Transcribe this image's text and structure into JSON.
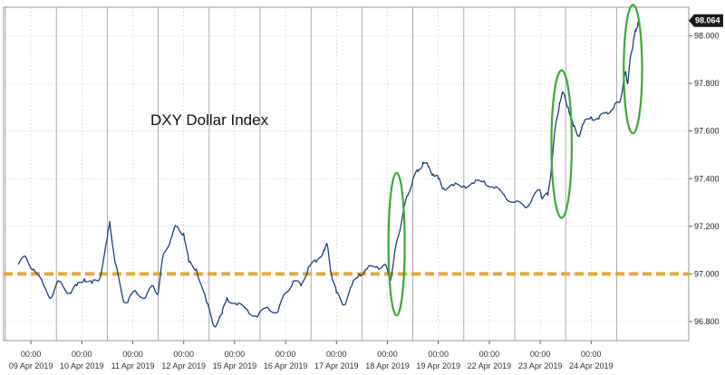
{
  "chart_data": {
    "type": "line",
    "title": "DXY Dollar Index",
    "xlabel": "",
    "ylabel": "",
    "ylim": [
      96.72,
      98.12
    ],
    "y_ticks": [
      96.8,
      97.0,
      97.2,
      97.4,
      97.6,
      97.8,
      98.0
    ],
    "y_tick_labels": [
      "96.800",
      "97.000",
      "97.200",
      "97.400",
      "97.600",
      "97.800",
      "98.000"
    ],
    "x_ticks": [
      {
        "time": "00:00",
        "date": "09 Apr 2019"
      },
      {
        "time": "00:00",
        "date": "10 Apr 2019"
      },
      {
        "time": "00:00",
        "date": "11 Apr 2019"
      },
      {
        "time": "00:00",
        "date": "12 Apr 2019"
      },
      {
        "time": "00:00",
        "date": "15 Apr 2019"
      },
      {
        "time": "00:00",
        "date": "16 Apr 2019"
      },
      {
        "time": "00:00",
        "date": "17 Apr 2019"
      },
      {
        "time": "00:00",
        "date": "18 Apr 2019"
      },
      {
        "time": "00:00",
        "date": "19 Apr 2019"
      },
      {
        "time": "00:00",
        "date": "22 Apr 2019"
      },
      {
        "time": "00:00",
        "date": "23 Apr 2019"
      },
      {
        "time": "00:00",
        "date": "24 Apr 2019"
      }
    ],
    "last_value": 98.064,
    "last_value_label": "98.064",
    "reference_line": {
      "value": 97.0,
      "color": "#e8a83a",
      "style": "dashed"
    },
    "grid": true,
    "series": [
      {
        "color": "#1f3f7a",
        "points": [
          [
            -0.25,
            97.04
          ],
          [
            -0.1,
            97.07
          ],
          [
            0.05,
            97.02
          ],
          [
            0.25,
            96.95
          ],
          [
            0.4,
            96.9
          ],
          [
            0.55,
            96.97
          ],
          [
            0.75,
            96.92
          ],
          [
            0.9,
            96.95
          ],
          [
            1.05,
            96.98
          ],
          [
            1.2,
            96.96
          ],
          [
            1.35,
            96.98
          ],
          [
            1.5,
            97.15
          ],
          [
            1.55,
            97.22
          ],
          [
            1.65,
            97.05
          ],
          [
            1.8,
            96.9
          ],
          [
            1.9,
            96.88
          ],
          [
            2.05,
            96.93
          ],
          [
            2.25,
            96.9
          ],
          [
            2.4,
            96.95
          ],
          [
            2.5,
            96.92
          ],
          [
            2.6,
            97.08
          ],
          [
            2.75,
            97.15
          ],
          [
            2.85,
            97.2
          ],
          [
            3.0,
            97.17
          ],
          [
            3.1,
            97.05
          ],
          [
            3.25,
            97.02
          ],
          [
            3.45,
            96.88
          ],
          [
            3.6,
            96.78
          ],
          [
            3.75,
            96.83
          ],
          [
            3.85,
            96.9
          ],
          [
            4.05,
            96.87
          ],
          [
            4.25,
            96.85
          ],
          [
            4.45,
            96.82
          ],
          [
            4.65,
            96.86
          ],
          [
            4.85,
            96.84
          ],
          [
            5.0,
            96.92
          ],
          [
            5.15,
            96.97
          ],
          [
            5.3,
            96.95
          ],
          [
            5.45,
            97.03
          ],
          [
            5.6,
            97.05
          ],
          [
            5.75,
            97.1
          ],
          [
            5.82,
            97.12
          ],
          [
            5.9,
            97.0
          ],
          [
            6.0,
            96.92
          ],
          [
            6.15,
            96.87
          ],
          [
            6.3,
            96.95
          ],
          [
            6.45,
            97.0
          ],
          [
            6.6,
            97.02
          ],
          [
            6.8,
            97.03
          ],
          [
            6.95,
            97.04
          ],
          [
            7.05,
            96.97
          ],
          [
            7.12,
            97.05
          ],
          [
            7.2,
            97.15
          ],
          [
            7.3,
            97.25
          ],
          [
            7.4,
            97.33
          ],
          [
            7.5,
            97.4
          ],
          [
            7.6,
            97.43
          ],
          [
            7.7,
            97.47
          ],
          [
            7.8,
            97.45
          ],
          [
            7.9,
            97.42
          ],
          [
            8.0,
            97.4
          ],
          [
            8.1,
            97.36
          ],
          [
            8.3,
            97.37
          ],
          [
            8.5,
            97.37
          ],
          [
            8.7,
            97.38
          ],
          [
            8.9,
            97.39
          ],
          [
            9.1,
            97.36
          ],
          [
            9.3,
            97.33
          ],
          [
            9.5,
            97.3
          ],
          [
            9.7,
            97.28
          ],
          [
            9.85,
            97.32
          ],
          [
            10.0,
            97.35
          ],
          [
            10.05,
            97.32
          ],
          [
            10.15,
            97.33
          ],
          [
            10.22,
            97.45
          ],
          [
            10.3,
            97.62
          ],
          [
            10.38,
            97.72
          ],
          [
            10.45,
            97.76
          ],
          [
            10.55,
            97.7
          ],
          [
            10.65,
            97.62
          ],
          [
            10.75,
            97.58
          ],
          [
            10.85,
            97.63
          ],
          [
            11.0,
            97.66
          ],
          [
            11.15,
            97.65
          ],
          [
            11.3,
            97.68
          ],
          [
            11.45,
            97.7
          ],
          [
            11.55,
            97.72
          ],
          [
            11.62,
            97.78
          ],
          [
            11.68,
            97.85
          ],
          [
            11.72,
            97.8
          ],
          [
            11.78,
            97.92
          ],
          [
            11.83,
            97.98
          ],
          [
            11.88,
            98.02
          ],
          [
            11.92,
            98.06
          ]
        ]
      }
    ],
    "annotations": [
      {
        "shape": "ellipse",
        "color": "#3aaa35",
        "x_center": 7.18,
        "y_center": 97.125,
        "x_radius": 0.16,
        "y_radius": 0.3
      },
      {
        "shape": "ellipse",
        "color": "#3aaa35",
        "x_center": 10.42,
        "y_center": 97.545,
        "x_radius": 0.2,
        "y_radius": 0.31
      },
      {
        "shape": "ellipse",
        "color": "#3aaa35",
        "x_center": 11.82,
        "y_center": 97.86,
        "x_radius": 0.18,
        "y_radius": 0.27
      }
    ]
  }
}
